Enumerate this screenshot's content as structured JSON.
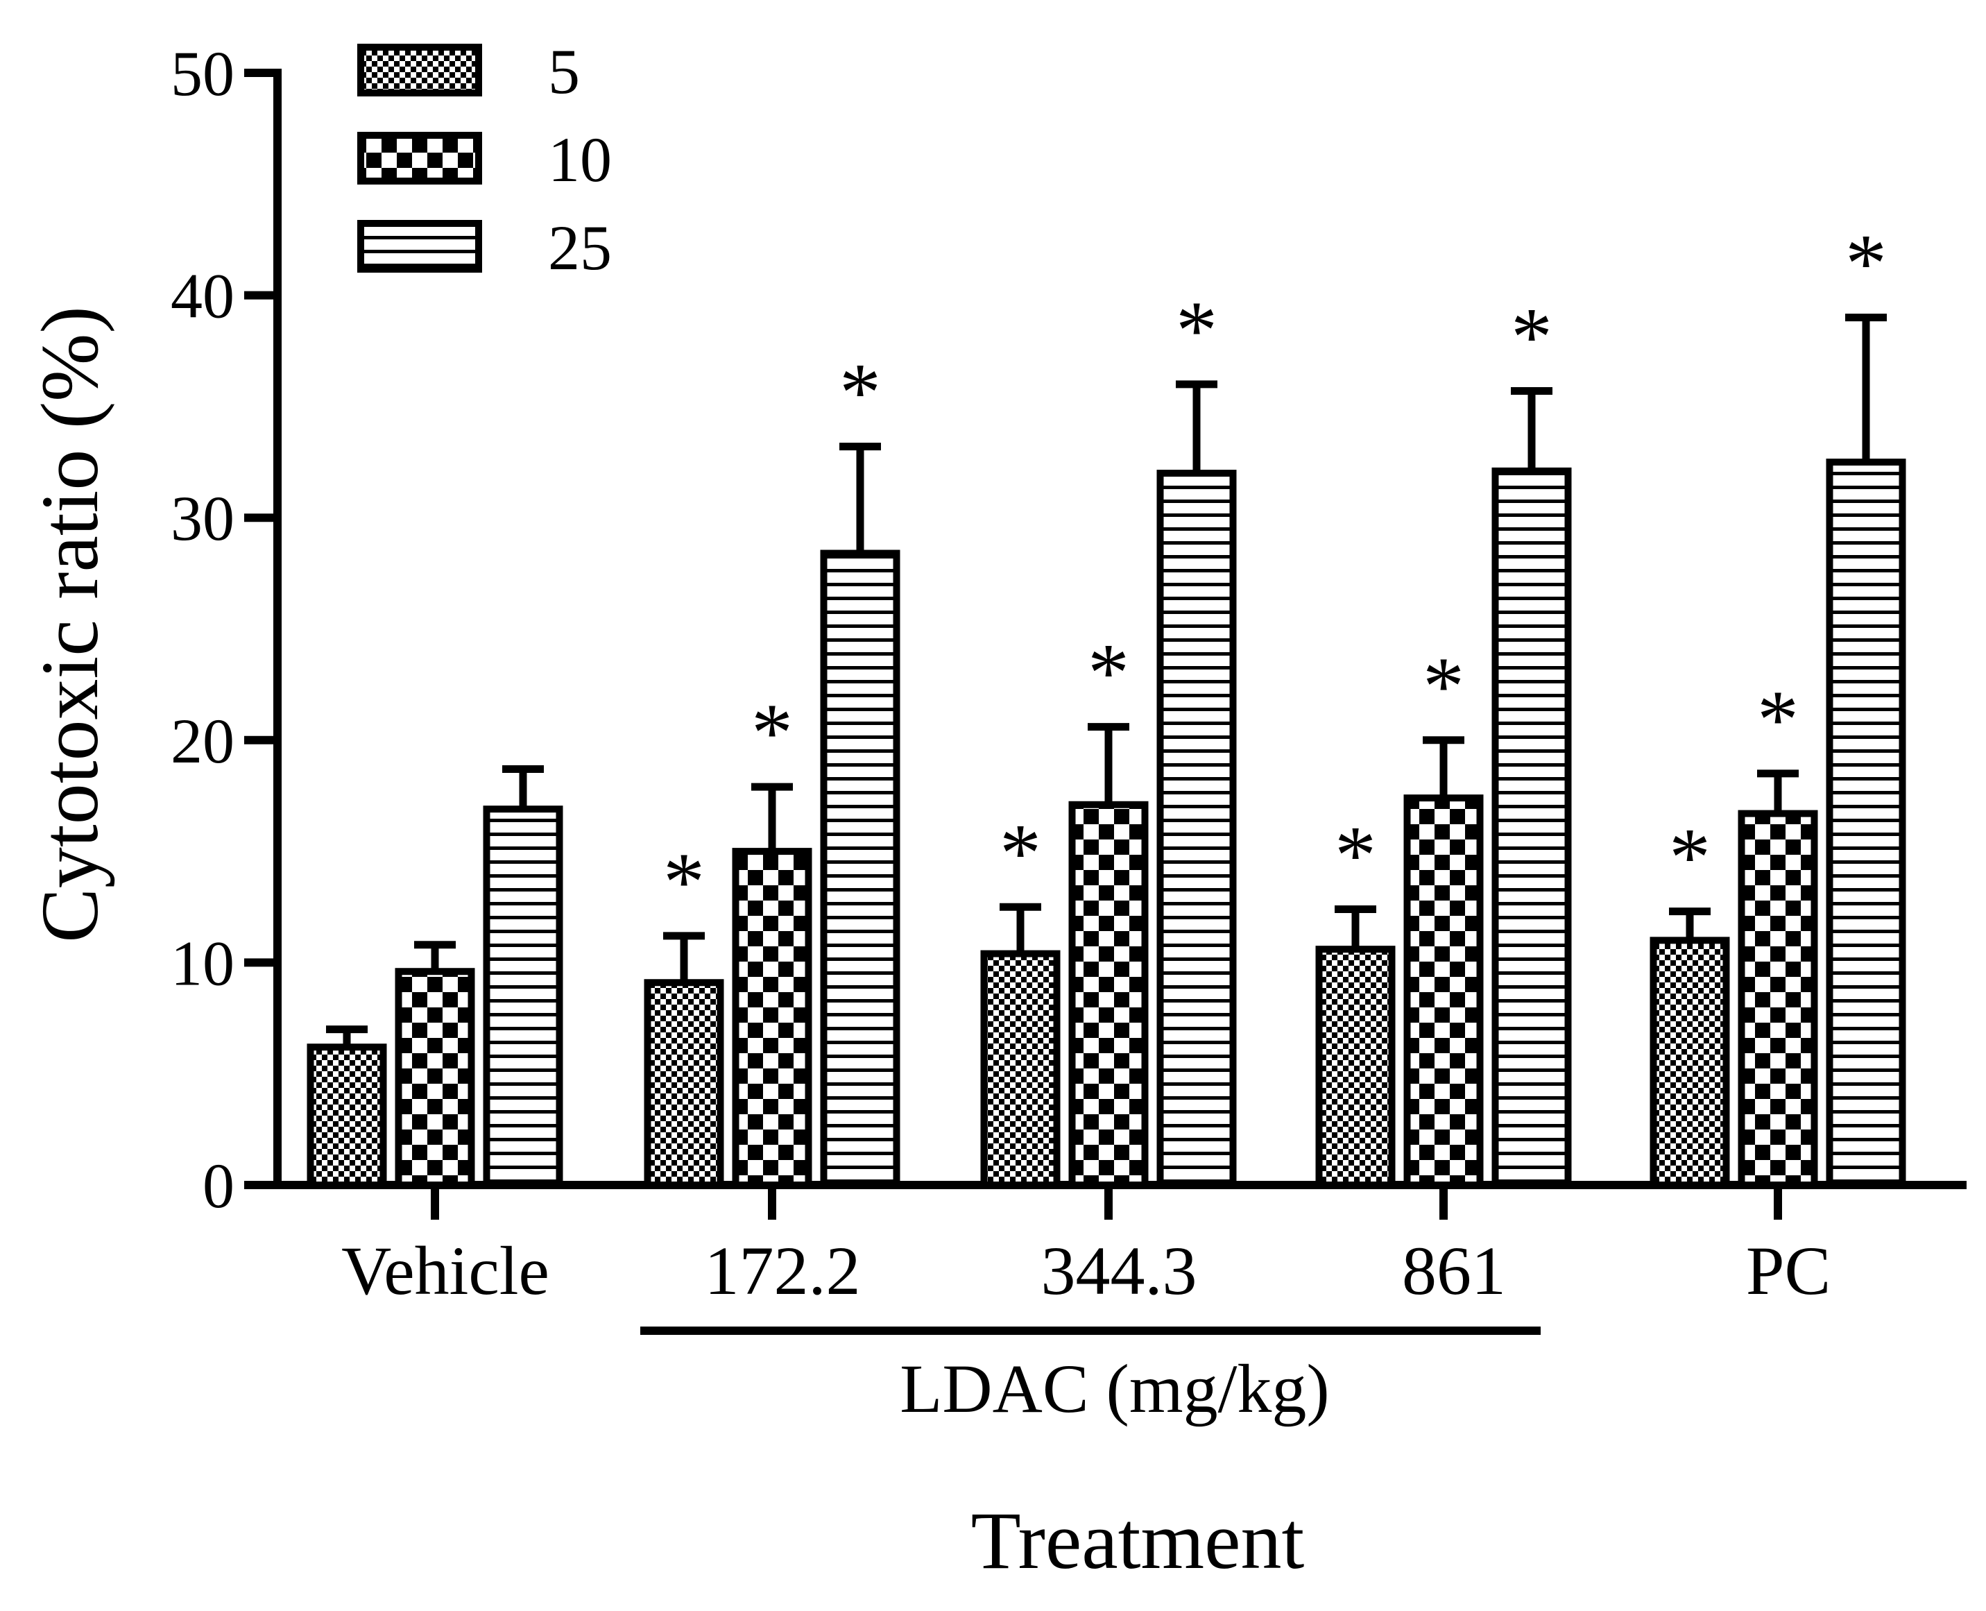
{
  "chart_data": {
    "type": "bar",
    "title": "",
    "xlabel": "Treatment",
    "ylabel": "Cytotoxic ratio (%)",
    "ylim": [
      0,
      50
    ],
    "yticks": [
      0,
      10,
      20,
      30,
      40,
      50
    ],
    "grid": false,
    "legend_position": "top-left",
    "categories": [
      "Vehicle",
      "172.2",
      "344.3",
      "861",
      "PC"
    ],
    "group_label": {
      "text": "LDAC (mg/kg)",
      "spans": [
        "172.2",
        "344.3",
        "861"
      ]
    },
    "significance_marker": "*",
    "series": [
      {
        "name": "5",
        "pattern": "fine-checker",
        "values": [
          6.2,
          9.1,
          10.4,
          10.6,
          11.0
        ],
        "errors": [
          0.8,
          2.1,
          2.1,
          1.8,
          1.3
        ],
        "significant": [
          false,
          true,
          true,
          true,
          true
        ]
      },
      {
        "name": "10",
        "pattern": "coarse-checker",
        "values": [
          9.6,
          15.0,
          17.1,
          17.4,
          16.7
        ],
        "errors": [
          1.2,
          2.9,
          3.5,
          2.6,
          1.8
        ],
        "significant": [
          false,
          true,
          true,
          true,
          true
        ]
      },
      {
        "name": "25",
        "pattern": "horizontal-stripes",
        "values": [
          16.9,
          28.4,
          32.0,
          32.1,
          32.5
        ],
        "errors": [
          1.8,
          4.8,
          4.0,
          3.6,
          6.5
        ],
        "significant": [
          false,
          true,
          true,
          true,
          true
        ]
      }
    ],
    "colors": {
      "ink": "#000000",
      "background": "#ffffff"
    }
  }
}
